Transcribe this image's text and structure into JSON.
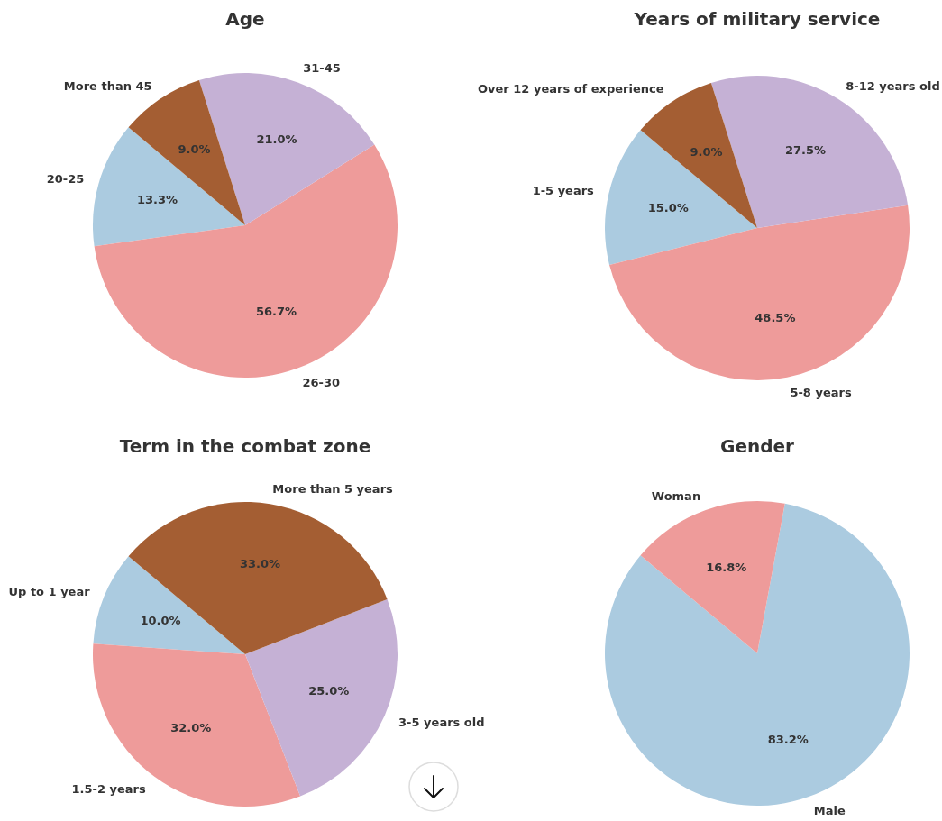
{
  "chart_data": [
    {
      "type": "pie",
      "title": "Age",
      "categories": [
        "20-25",
        "26-30",
        "31-45",
        "More than 45"
      ],
      "values": [
        13.3,
        56.7,
        21.0,
        9.0
      ],
      "value_labels": [
        "13.3%",
        "56.7%",
        "21.0%",
        "9.0%"
      ],
      "colors": [
        "#abcbe0",
        "#ee9b9a",
        "#c5b1d5",
        "#a45e33"
      ]
    },
    {
      "type": "pie",
      "title": "Years of military service",
      "categories": [
        "1-5 years",
        "5-8 years",
        "8-12 years old",
        "Over 12 years of experience"
      ],
      "values": [
        15.0,
        48.5,
        27.5,
        9.0
      ],
      "value_labels": [
        "15.0%",
        "48.5%",
        "27.5%",
        "9.0%"
      ],
      "colors": [
        "#abcbe0",
        "#ee9b9a",
        "#c5b1d5",
        "#a45e33"
      ]
    },
    {
      "type": "pie",
      "title": "Term in the combat zone",
      "categories": [
        "Up to 1 year",
        "1.5-2 years",
        "3-5 years old",
        "More than 5 years"
      ],
      "values": [
        10.0,
        32.0,
        25.0,
        33.0
      ],
      "value_labels": [
        "10.0%",
        "32.0%",
        "25.0%",
        "33.0%"
      ],
      "colors": [
        "#abcbe0",
        "#ee9b9a",
        "#c5b1d5",
        "#a45e33"
      ]
    },
    {
      "type": "pie",
      "title": "Gender",
      "categories": [
        "Male",
        "Woman"
      ],
      "values": [
        83.2,
        16.8
      ],
      "value_labels": [
        "83.2%",
        "16.8%"
      ],
      "colors": [
        "#abcbe0",
        "#ee9b9a"
      ]
    }
  ]
}
